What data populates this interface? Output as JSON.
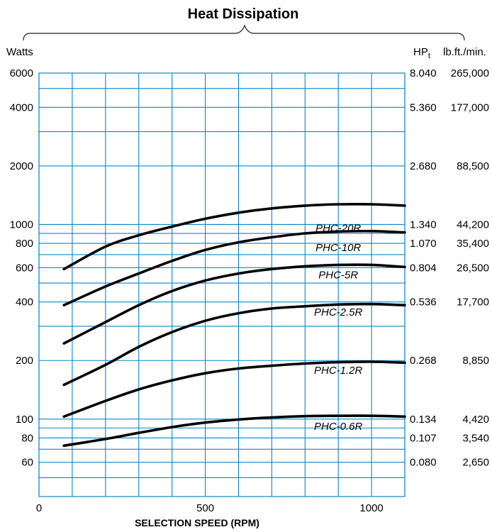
{
  "chart_data": {
    "type": "line",
    "title": "Heat Dissipation",
    "xlabel": "SELECTION SPEED (RPM)",
    "left_unit": "Watts",
    "right_unit_1": "HP",
    "right_unit_1_sub": "t",
    "right_unit_2": "lb.ft./min.",
    "xlim": [
      0,
      1100
    ],
    "ylim": [
      40,
      6000
    ],
    "y_scale": "log",
    "x_ticks": [
      {
        "value": 0,
        "label": "0"
      },
      {
        "value": 500,
        "label": "500"
      },
      {
        "value": 1000,
        "label": "1000"
      }
    ],
    "x_grid": [
      0,
      100,
      200,
      300,
      400,
      500,
      600,
      700,
      800,
      900,
      1000,
      1100
    ],
    "y_grid": [
      40,
      50,
      60,
      70,
      80,
      90,
      100,
      200,
      300,
      400,
      500,
      600,
      700,
      800,
      900,
      1000,
      2000,
      3000,
      4000,
      5000,
      6000
    ],
    "y_ticks": [
      {
        "value": 6000,
        "left": "6000",
        "hp": "8.040",
        "lbft": "265,000"
      },
      {
        "value": 4000,
        "left": "4000",
        "hp": "5.360",
        "lbft": "177,000"
      },
      {
        "value": 2000,
        "left": "2000",
        "hp": "2.680",
        "lbft": "88,500"
      },
      {
        "value": 1000,
        "left": "1000",
        "hp": "1.340",
        "lbft": "44,200"
      },
      {
        "value": 800,
        "left": "800",
        "hp": "1.070",
        "lbft": "35,400"
      },
      {
        "value": 600,
        "left": "600",
        "hp": "0.804",
        "lbft": "26,500"
      },
      {
        "value": 400,
        "left": "400",
        "hp": "0.536",
        "lbft": "17,700"
      },
      {
        "value": 200,
        "left": "200",
        "hp": "0.268",
        "lbft": "8,850"
      },
      {
        "value": 100,
        "left": "100",
        "hp": "0.134",
        "lbft": "4,420"
      },
      {
        "value": 80,
        "left": "80",
        "hp": "0.107",
        "lbft": "3,540"
      },
      {
        "value": 60,
        "left": "60",
        "hp": "0.080",
        "lbft": "2,650"
      }
    ],
    "series": [
      {
        "name": "PHC-20R",
        "label_at": [
          900,
          960
        ],
        "x": [
          75,
          200,
          300,
          400,
          500,
          600,
          700,
          800,
          900,
          1000,
          1100
        ],
        "values": [
          590,
          770,
          880,
          975,
          1070,
          1150,
          1210,
          1250,
          1270,
          1270,
          1250
        ]
      },
      {
        "name": "PHC-10R",
        "label_at": [
          900,
          760
        ],
        "x": [
          75,
          200,
          300,
          400,
          500,
          600,
          700,
          800,
          900,
          1000,
          1100
        ],
        "values": [
          385,
          480,
          560,
          650,
          740,
          810,
          860,
          900,
          920,
          925,
          910
        ]
      },
      {
        "name": "PHC-5R",
        "label_at": [
          900,
          550
        ],
        "x": [
          75,
          200,
          300,
          400,
          500,
          600,
          700,
          800,
          900,
          1000,
          1100
        ],
        "values": [
          245,
          315,
          385,
          455,
          515,
          560,
          590,
          610,
          620,
          620,
          605
        ]
      },
      {
        "name": "PHC-2.5R",
        "label_at": [
          900,
          355
        ],
        "x": [
          75,
          200,
          300,
          400,
          500,
          600,
          700,
          800,
          900,
          1000,
          1100
        ],
        "values": [
          150,
          190,
          235,
          280,
          320,
          350,
          370,
          380,
          388,
          390,
          385
        ]
      },
      {
        "name": "PHC-1.2R",
        "label_at": [
          900,
          178
        ],
        "x": [
          75,
          200,
          300,
          400,
          500,
          600,
          700,
          800,
          900,
          1000,
          1100
        ],
        "values": [
          103,
          124,
          142,
          158,
          172,
          182,
          188,
          193,
          196,
          197,
          195
        ]
      },
      {
        "name": "PHC-0.6R",
        "label_at": [
          900,
          92
        ],
        "x": [
          75,
          200,
          300,
          400,
          500,
          600,
          700,
          800,
          900,
          1000,
          1100
        ],
        "values": [
          73,
          79,
          85,
          91,
          96,
          99.5,
          102,
          103.5,
          104,
          104,
          103
        ]
      }
    ]
  }
}
